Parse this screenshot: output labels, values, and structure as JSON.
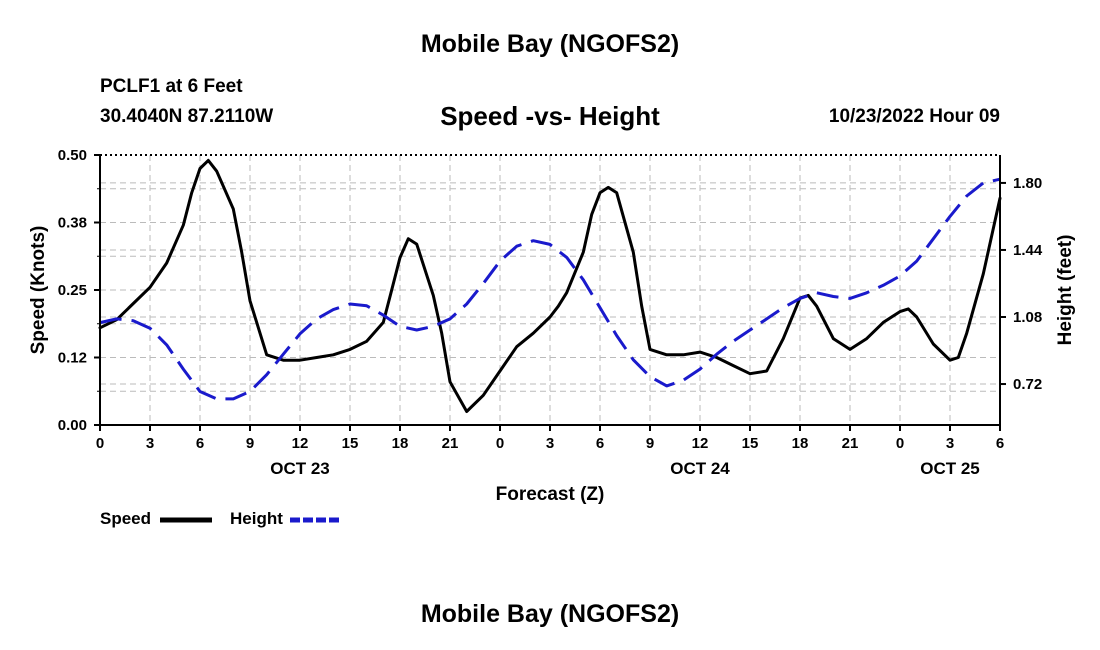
{
  "header": {
    "title": "Mobile Bay (NGOFS2)",
    "station": "PCLF1 at 6 Feet",
    "coordinates": "30.4040N  87.2110W",
    "subtitle": "Speed -vs- Height",
    "datetime": "10/23/2022 Hour 09"
  },
  "footer": {
    "title": "Mobile Bay (NGOFS2)"
  },
  "legend": {
    "speed_label": "Speed",
    "height_label": "Height"
  },
  "colors": {
    "speed": "#000000",
    "height": "#1a1acc",
    "grid": "#bbbbbb"
  },
  "chart_data": {
    "type": "line",
    "title": "Speed -vs- Height",
    "xlabel": "Forecast (Z)",
    "ylabel": "Speed (Knots)",
    "y2label": "Height (feet)",
    "xlim": [
      0,
      54
    ],
    "ylim": [
      0,
      0.5
    ],
    "y2lim": [
      0.5,
      1.95
    ],
    "x_ticks": [
      {
        "x": 0,
        "label": "0"
      },
      {
        "x": 3,
        "label": "3"
      },
      {
        "x": 6,
        "label": "6"
      },
      {
        "x": 9,
        "label": "9"
      },
      {
        "x": 12,
        "label": "12"
      },
      {
        "x": 15,
        "label": "15"
      },
      {
        "x": 18,
        "label": "18"
      },
      {
        "x": 21,
        "label": "21"
      },
      {
        "x": 24,
        "label": "0"
      },
      {
        "x": 27,
        "label": "3"
      },
      {
        "x": 30,
        "label": "6"
      },
      {
        "x": 33,
        "label": "9"
      },
      {
        "x": 36,
        "label": "12"
      },
      {
        "x": 39,
        "label": "15"
      },
      {
        "x": 42,
        "label": "18"
      },
      {
        "x": 45,
        "label": "21"
      },
      {
        "x": 48,
        "label": "0"
      },
      {
        "x": 51,
        "label": "3"
      },
      {
        "x": 54,
        "label": "6"
      }
    ],
    "date_labels": [
      {
        "x": 12,
        "label": "OCT 23"
      },
      {
        "x": 36,
        "label": "OCT 24"
      },
      {
        "x": 51,
        "label": "OCT 25"
      }
    ],
    "y_ticks": [
      {
        "v": 0,
        "label": "0.00"
      },
      {
        "v": 0.125,
        "label": "0.12"
      },
      {
        "v": 0.25,
        "label": "0.25"
      },
      {
        "v": 0.375,
        "label": "0.38"
      },
      {
        "v": 0.5,
        "label": "0.50"
      }
    ],
    "y2_ticks": [
      {
        "v": 0.72,
        "label": "0.72"
      },
      {
        "v": 1.08,
        "label": "1.08"
      },
      {
        "v": 1.44,
        "label": "1.44"
      },
      {
        "v": 1.8,
        "label": "1.80"
      }
    ],
    "series": [
      {
        "name": "Speed",
        "axis": "left",
        "style": "solid",
        "x": [
          0,
          1,
          2,
          3,
          4,
          5,
          5.5,
          6,
          6.5,
          7,
          8,
          8.5,
          9,
          10,
          11,
          12,
          13,
          14,
          15,
          16,
          17,
          17.5,
          18,
          18.5,
          19,
          20,
          20.5,
          21,
          22,
          23,
          24,
          25,
          26,
          27,
          27.5,
          28,
          29,
          29.5,
          30,
          30.5,
          31,
          32,
          32.5,
          33,
          34,
          35,
          36,
          37,
          38,
          39,
          40,
          41,
          42,
          42.5,
          43,
          44,
          45,
          46,
          47,
          48,
          48.5,
          49,
          50,
          51,
          51.5,
          52,
          53,
          54
        ],
        "values": [
          0.18,
          0.195,
          0.225,
          0.255,
          0.3,
          0.37,
          0.43,
          0.475,
          0.49,
          0.47,
          0.4,
          0.32,
          0.23,
          0.13,
          0.12,
          0.12,
          0.125,
          0.13,
          0.14,
          0.155,
          0.19,
          0.25,
          0.31,
          0.345,
          0.335,
          0.24,
          0.17,
          0.08,
          0.025,
          0.055,
          0.1,
          0.145,
          0.17,
          0.2,
          0.22,
          0.245,
          0.32,
          0.39,
          0.43,
          0.44,
          0.43,
          0.32,
          0.22,
          0.14,
          0.13,
          0.13,
          0.135,
          0.125,
          0.11,
          0.095,
          0.1,
          0.16,
          0.235,
          0.24,
          0.22,
          0.16,
          0.14,
          0.16,
          0.19,
          0.21,
          0.215,
          0.2,
          0.15,
          0.12,
          0.125,
          0.17,
          0.28,
          0.42
        ]
      },
      {
        "name": "Height",
        "axis": "right",
        "style": "dashed",
        "x": [
          0,
          1,
          2,
          3,
          4,
          5,
          6,
          7,
          8,
          9,
          10,
          11,
          12,
          13,
          14,
          15,
          16,
          17,
          18,
          19,
          20,
          21,
          22,
          23,
          24,
          25,
          26,
          27,
          28,
          29,
          30,
          31,
          32,
          33,
          34,
          35,
          36,
          37,
          38,
          39,
          40,
          41,
          42,
          43,
          44,
          45,
          46,
          47,
          48,
          49,
          50,
          51,
          52,
          53,
          54
        ],
        "values": [
          1.05,
          1.07,
          1.06,
          1.02,
          0.93,
          0.8,
          0.68,
          0.64,
          0.64,
          0.68,
          0.77,
          0.88,
          0.99,
          1.07,
          1.12,
          1.15,
          1.14,
          1.09,
          1.03,
          1.01,
          1.03,
          1.07,
          1.15,
          1.26,
          1.38,
          1.46,
          1.49,
          1.47,
          1.4,
          1.28,
          1.13,
          0.98,
          0.85,
          0.76,
          0.71,
          0.74,
          0.8,
          0.88,
          0.95,
          1.01,
          1.07,
          1.13,
          1.18,
          1.21,
          1.19,
          1.18,
          1.21,
          1.25,
          1.3,
          1.38,
          1.5,
          1.62,
          1.73,
          1.8,
          1.82
        ]
      }
    ]
  }
}
